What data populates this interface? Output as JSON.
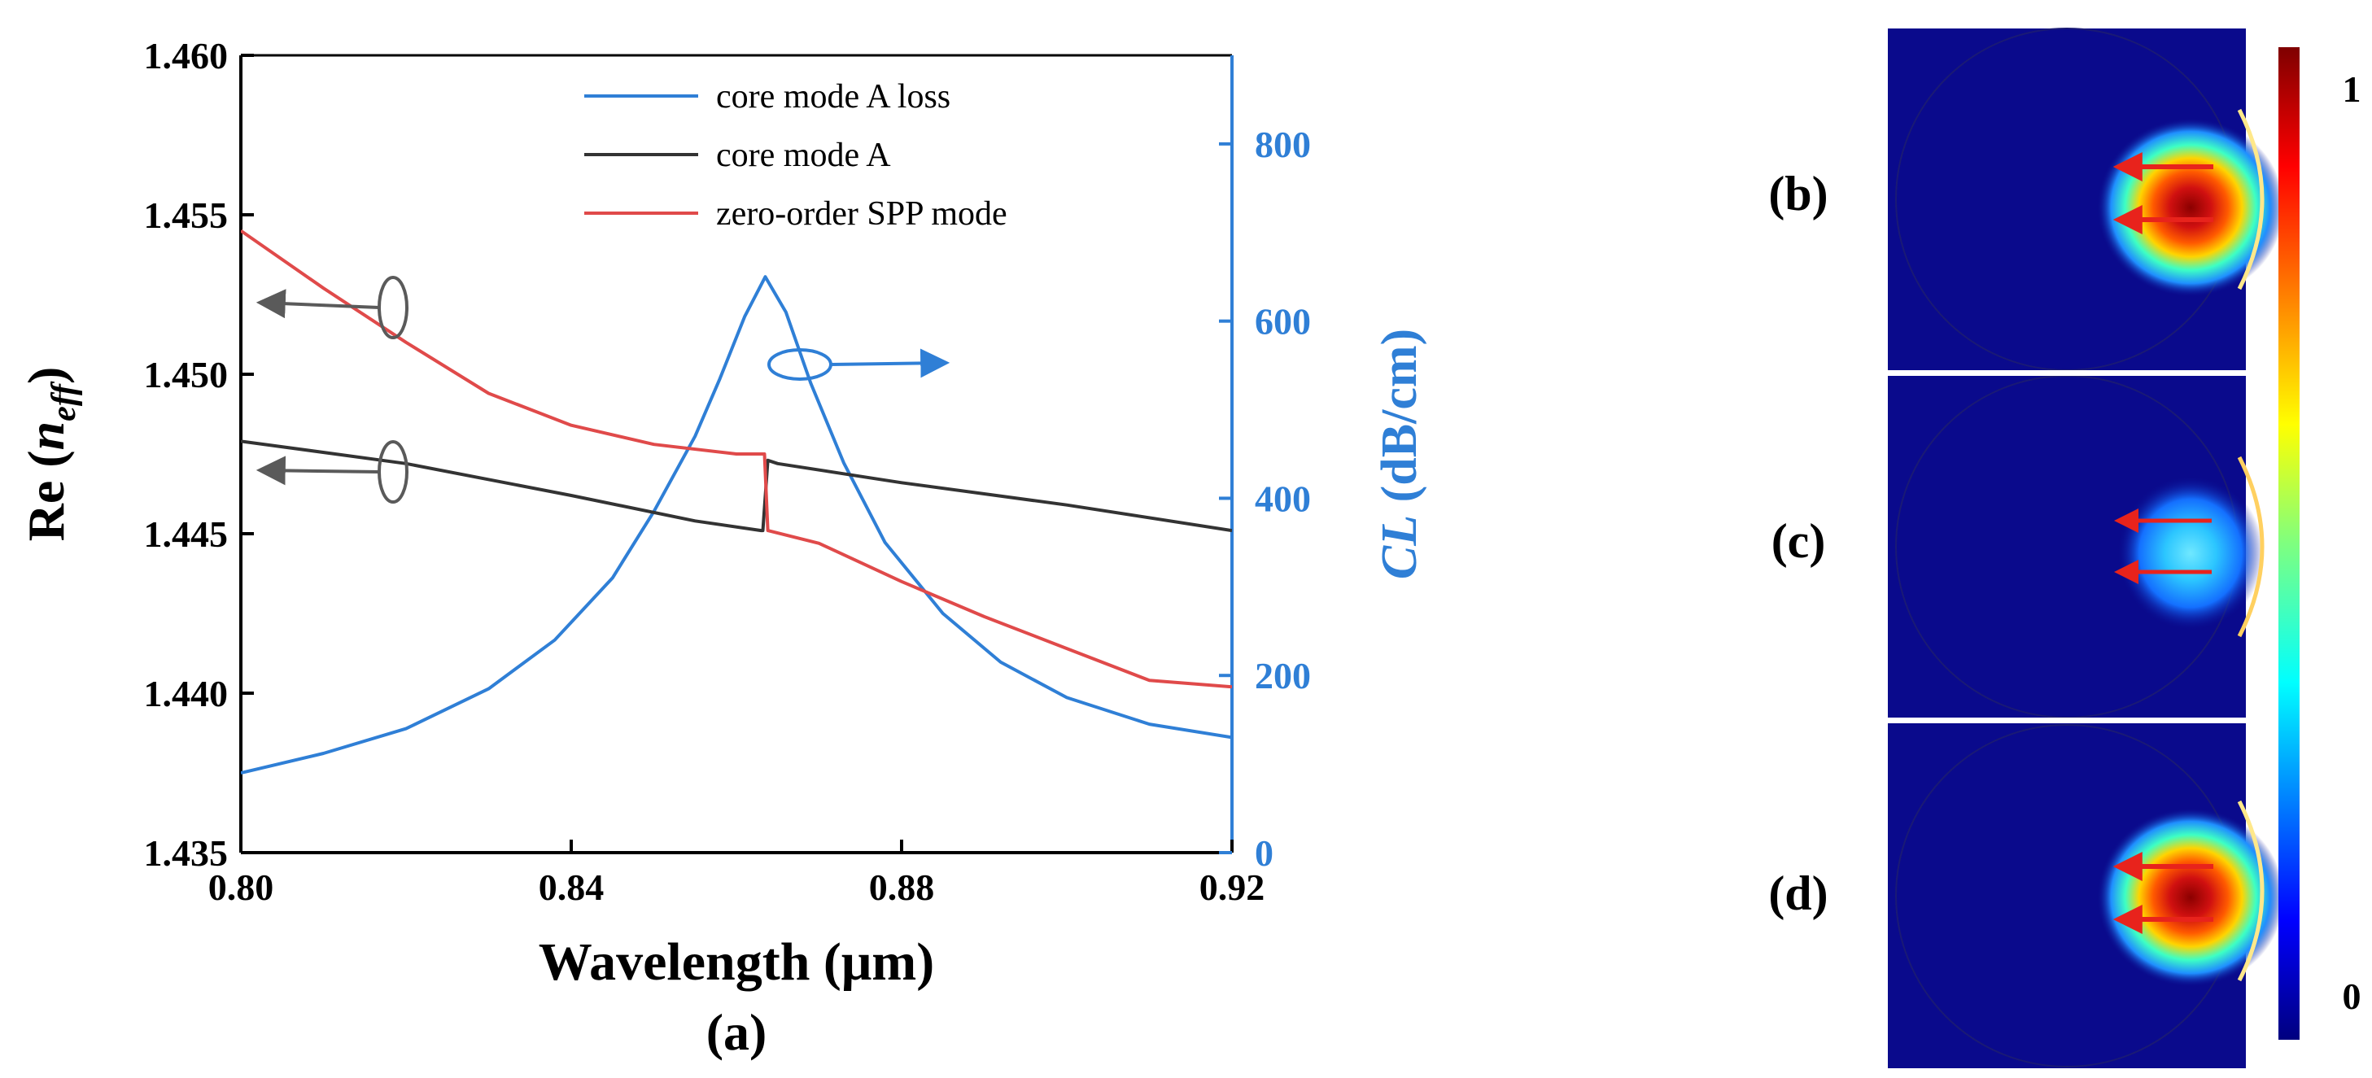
{
  "colors": {
    "blue": "#2f7fd6",
    "black": "#333333",
    "red": "#e04a4a",
    "axis_black": "#000000",
    "arrow_gray": "#5a5a5a",
    "field_bg": "#0a0a8c",
    "field_red_arrow": "#e8231c"
  },
  "chart_data": [
    {
      "type": "line",
      "panel_label": "(a)",
      "xlabel": "Wavelength (μm)",
      "ylabel": {
        "prefix": "Re (",
        "var": "n",
        "sub": "eff",
        "suffix": ")"
      },
      "y2label": {
        "var": "CL",
        "unit": " (dB/cm)"
      },
      "xlim": [
        0.8,
        0.92
      ],
      "ylim": [
        1.435,
        1.46
      ],
      "y2lim": [
        0,
        900
      ],
      "xticks": [
        "0.80",
        "0.84",
        "0.88",
        "0.92"
      ],
      "xtick_values": [
        0.8,
        0.84,
        0.88,
        0.92
      ],
      "yticks": [
        "1.435",
        "1.440",
        "1.445",
        "1.450",
        "1.455",
        "1.460"
      ],
      "ytick_values": [
        1.435,
        1.44,
        1.445,
        1.45,
        1.455,
        1.46
      ],
      "y2ticks": [
        "0",
        "200",
        "400",
        "600",
        "800"
      ],
      "y2tick_values": [
        0,
        200,
        400,
        600,
        800
      ],
      "legend_position": "top-center",
      "series": [
        {
          "name": "core mode A loss",
          "axis": "right",
          "color_key": "blue",
          "x": [
            0.8,
            0.81,
            0.82,
            0.83,
            0.838,
            0.845,
            0.85,
            0.855,
            0.858,
            0.861,
            0.8635,
            0.866,
            0.869,
            0.873,
            0.878,
            0.885,
            0.892,
            0.9,
            0.91,
            0.92
          ],
          "y": [
            90,
            112,
            140,
            185,
            240,
            310,
            385,
            470,
            535,
            605,
            650,
            610,
            530,
            440,
            350,
            270,
            215,
            175,
            145,
            130
          ]
        },
        {
          "name": "core mode A",
          "axis": "left",
          "color_key": "black",
          "x": [
            0.8,
            0.82,
            0.84,
            0.855,
            0.863,
            0.8632,
            0.8638,
            0.865,
            0.88,
            0.9,
            0.92
          ],
          "y": [
            1.4479,
            1.4472,
            1.4462,
            1.4454,
            1.4451,
            1.4451,
            1.4473,
            1.4472,
            1.4466,
            1.4459,
            1.4451
          ]
        },
        {
          "name": "zero-order SPP mode",
          "axis": "left",
          "color_key": "red",
          "x": [
            0.8,
            0.81,
            0.82,
            0.83,
            0.84,
            0.85,
            0.86,
            0.8632,
            0.8634,
            0.8638,
            0.87,
            0.88,
            0.89,
            0.9,
            0.91,
            0.92
          ],
          "y": [
            1.4545,
            1.4527,
            1.451,
            1.4494,
            1.4484,
            1.4478,
            1.4475,
            1.4475,
            1.4475,
            1.4451,
            1.4447,
            1.4435,
            1.4424,
            1.4414,
            1.4404,
            1.4402
          ]
        }
      ],
      "annotations": [
        {
          "kind": "ellipse-arrow",
          "direction": "left",
          "target_axis": "left",
          "note": "SPP mode"
        },
        {
          "kind": "ellipse-arrow",
          "direction": "left",
          "target_axis": "left",
          "note": "core mode A"
        },
        {
          "kind": "ellipse-arrow",
          "direction": "right",
          "target_axis": "right",
          "note": "loss"
        }
      ]
    },
    {
      "type": "heatmap",
      "panels": [
        {
          "label": "(b)",
          "intensity": "strong"
        },
        {
          "label": "(c)",
          "intensity": "weak"
        },
        {
          "label": "(d)",
          "intensity": "strong"
        }
      ],
      "colorbar": {
        "min": 0,
        "max": 1,
        "tick_labels": [
          "1",
          "0"
        ]
      }
    }
  ]
}
